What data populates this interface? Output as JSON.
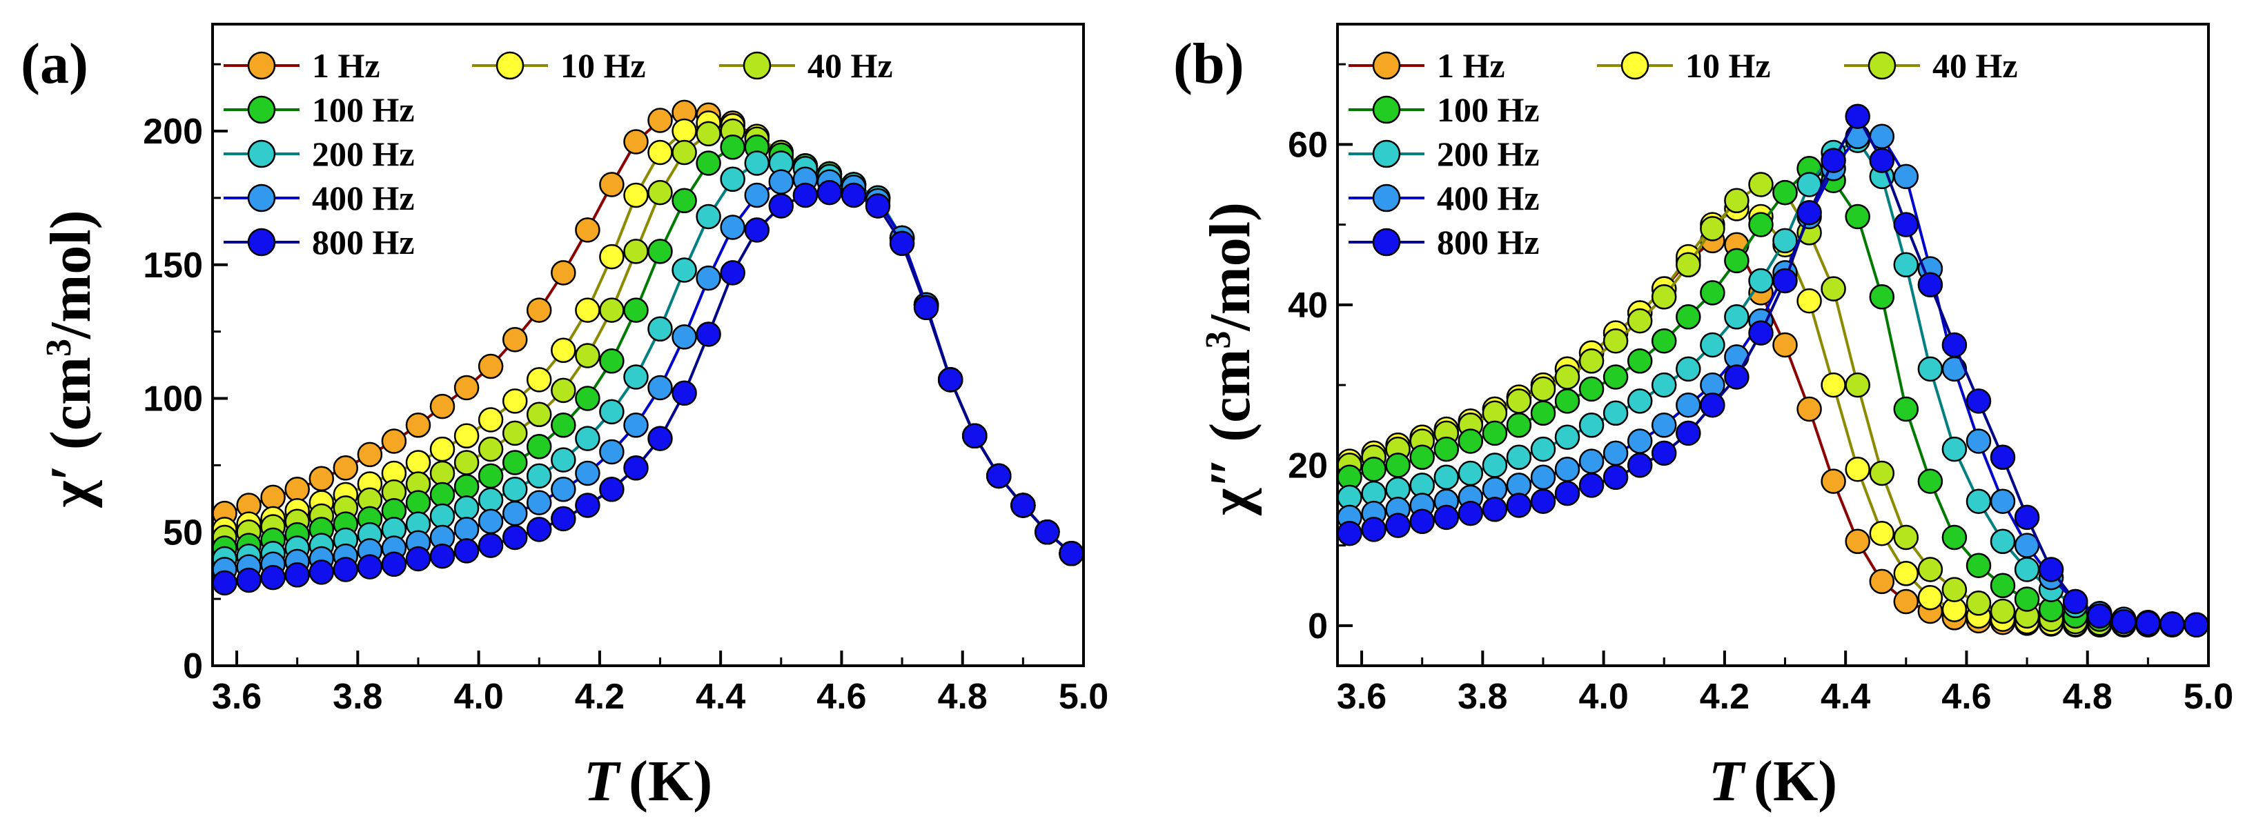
{
  "colors": {
    "1 Hz": {
      "line": "#8B0000",
      "fill": "#F5A623"
    },
    "10 Hz": {
      "line": "#8B8B00",
      "fill": "#FFFF33"
    },
    "40 Hz": {
      "line": "#8B8B00",
      "fill": "#B5E61D"
    },
    "100 Hz": {
      "line": "#007A00",
      "fill": "#22CC22"
    },
    "200 Hz": {
      "line": "#008080",
      "fill": "#33CCCC"
    },
    "400 Hz": {
      "line": "#0000CC",
      "fill": "#3399EE"
    },
    "800 Hz": {
      "line": "#00008B",
      "fill": "#1010EE"
    }
  },
  "chart_data": [
    {
      "type": "line",
      "panel_label": "(a)",
      "xlabel": "T",
      "xlabel_unit": "(K)",
      "ylabel": "χ′ (cm³/mol)",
      "ylabel_main": "χ′ (cm",
      "ylabel_sup": "3",
      "ylabel_tail": "/mol)",
      "xlim": [
        3.56,
        5.0
      ],
      "ylim": [
        0,
        240
      ],
      "xticks": [
        "3.6",
        "3.8",
        "4.0",
        "4.2",
        "4.4",
        "4.6",
        "4.8",
        "5.0"
      ],
      "yticks": [
        "0",
        "50",
        "100",
        "150",
        "200"
      ],
      "legend_position": "top-left",
      "x": [
        3.58,
        3.62,
        3.66,
        3.7,
        3.74,
        3.78,
        3.82,
        3.86,
        3.9,
        3.94,
        3.98,
        4.02,
        4.06,
        4.1,
        4.14,
        4.18,
        4.22,
        4.26,
        4.3,
        4.34,
        4.38,
        4.42,
        4.46,
        4.5,
        4.54,
        4.58,
        4.62,
        4.66,
        4.7,
        4.74,
        4.78,
        4.82,
        4.86,
        4.9,
        4.94,
        4.98
      ],
      "series": [
        {
          "name": "1 Hz",
          "values": [
            57,
            60,
            63,
            66,
            70,
            74,
            79,
            84,
            90,
            97,
            104,
            112,
            122,
            133,
            147,
            163,
            180,
            196,
            204,
            207,
            206,
            203,
            198,
            192,
            187,
            184,
            180,
            175,
            160,
            135,
            107,
            86,
            71,
            60,
            50,
            42
          ]
        },
        {
          "name": "10 Hz",
          "values": [
            51,
            53,
            55,
            58,
            61,
            64,
            68,
            72,
            76,
            81,
            86,
            92,
            99,
            107,
            118,
            133,
            153,
            176,
            192,
            200,
            203,
            202,
            198,
            192,
            187,
            184,
            180,
            175,
            160,
            135,
            107,
            86,
            71,
            60,
            50,
            42
          ]
        },
        {
          "name": "40 Hz",
          "values": [
            48,
            50,
            52,
            54,
            56,
            59,
            62,
            65,
            68,
            72,
            76,
            81,
            87,
            94,
            103,
            116,
            133,
            155,
            177,
            192,
            199,
            200,
            197,
            192,
            187,
            184,
            180,
            175,
            160,
            135,
            107,
            86,
            71,
            60,
            50,
            42
          ]
        },
        {
          "name": "100 Hz",
          "values": [
            44,
            45,
            47,
            49,
            51,
            53,
            55,
            58,
            61,
            64,
            67,
            71,
            76,
            82,
            90,
            100,
            114,
            133,
            155,
            174,
            188,
            194,
            194,
            191,
            187,
            184,
            180,
            175,
            160,
            135,
            107,
            86,
            71,
            60,
            50,
            42
          ]
        },
        {
          "name": "200 Hz",
          "values": [
            40,
            41,
            42,
            44,
            45,
            47,
            49,
            51,
            53,
            56,
            59,
            62,
            66,
            71,
            77,
            85,
            95,
            108,
            126,
            148,
            168,
            182,
            188,
            188,
            186,
            183,
            180,
            175,
            160,
            135,
            107,
            86,
            71,
            60,
            50,
            42
          ]
        },
        {
          "name": "400 Hz",
          "values": [
            36,
            37,
            38,
            39,
            40,
            41,
            43,
            44,
            46,
            48,
            51,
            54,
            57,
            61,
            66,
            72,
            80,
            90,
            104,
            123,
            145,
            164,
            176,
            181,
            182,
            181,
            179,
            174,
            160,
            135,
            107,
            86,
            71,
            60,
            50,
            42
          ]
        },
        {
          "name": "800 Hz",
          "values": [
            31,
            32,
            33,
            34,
            35,
            36,
            37,
            38,
            40,
            41,
            43,
            45,
            48,
            51,
            55,
            60,
            66,
            74,
            85,
            102,
            124,
            147,
            163,
            172,
            176,
            177,
            176,
            172,
            158,
            134,
            107,
            86,
            71,
            60,
            50,
            42
          ]
        }
      ]
    },
    {
      "type": "line",
      "panel_label": "(b)",
      "xlabel": "T",
      "xlabel_unit": "(K)",
      "ylabel": "χ″ (cm³/mol)",
      "ylabel_main": "χ″ (cm",
      "ylabel_sup": "3",
      "ylabel_tail": "/mol)",
      "xlim": [
        3.56,
        5.0
      ],
      "ylim": [
        -5,
        75
      ],
      "xticks": [
        "3.6",
        "3.8",
        "4.0",
        "4.2",
        "4.4",
        "4.6",
        "4.8",
        "5.0"
      ],
      "yticks": [
        "0",
        "20",
        "40",
        "60"
      ],
      "legend_position": "top-left",
      "x": [
        3.58,
        3.62,
        3.66,
        3.7,
        3.74,
        3.78,
        3.82,
        3.86,
        3.9,
        3.94,
        3.98,
        4.02,
        4.06,
        4.1,
        4.14,
        4.18,
        4.22,
        4.26,
        4.3,
        4.34,
        4.38,
        4.42,
        4.46,
        4.5,
        4.54,
        4.58,
        4.62,
        4.66,
        4.7,
        4.74,
        4.78,
        4.82,
        4.86,
        4.9,
        4.94,
        4.98
      ],
      "series": [
        {
          "name": "1 Hz",
          "values": [
            20.5,
            21.5,
            22.5,
            23.5,
            24.5,
            25.5,
            27,
            28.5,
            30,
            32,
            34,
            36.5,
            39,
            42,
            45.5,
            48,
            47.5,
            41.5,
            35,
            27,
            18,
            10.5,
            5.5,
            3,
            1.8,
            1.0,
            0.6,
            0.4,
            0.3,
            0.2,
            0.1,
            0.1,
            0.1,
            0.1,
            0.1,
            0.1
          ]
        },
        {
          "name": "10 Hz",
          "values": [
            20.5,
            21.5,
            22.5,
            23.5,
            24.5,
            25.5,
            27,
            28.5,
            30,
            32,
            34,
            36.5,
            39,
            42,
            46,
            50,
            52,
            51,
            47.5,
            40.5,
            30,
            19.5,
            11.5,
            6.5,
            3.5,
            2.0,
            1.2,
            0.8,
            0.5,
            0.3,
            0.2,
            0.1,
            0.1,
            0.1,
            0.1,
            0.1
          ]
        },
        {
          "name": "40 Hz",
          "values": [
            20,
            21,
            22,
            23,
            24,
            25,
            26.5,
            28,
            29.5,
            31,
            33,
            35.5,
            38,
            41,
            45,
            49.5,
            53,
            55,
            54,
            49,
            42,
            30,
            19,
            11,
            7,
            4.5,
            2.8,
            1.8,
            1.2,
            0.8,
            0.5,
            0.3,
            0.2,
            0.1,
            0.1,
            0.1
          ]
        },
        {
          "name": "100 Hz",
          "values": [
            18.5,
            19.5,
            20,
            21,
            22,
            23,
            24,
            25,
            26.5,
            28,
            29.5,
            31,
            33,
            35.5,
            38.5,
            41.5,
            45.5,
            50,
            54,
            57,
            55.5,
            51,
            41,
            27,
            18,
            11,
            7.5,
            5,
            3.3,
            2.0,
            1.2,
            0.8,
            0.5,
            0.3,
            0.2,
            0.1
          ]
        },
        {
          "name": "200 Hz",
          "values": [
            16,
            16.5,
            17,
            17.5,
            18.5,
            19,
            20,
            21,
            22,
            23.5,
            25,
            26.5,
            28,
            30,
            32,
            35,
            38.5,
            43,
            48,
            55,
            59,
            60.5,
            56,
            45,
            32,
            22,
            15.5,
            10.5,
            7,
            4.5,
            2.5,
            1.5,
            0.8,
            0.4,
            0.2,
            0.1
          ]
        },
        {
          "name": "400 Hz",
          "values": [
            13.5,
            14,
            14.5,
            15,
            15.5,
            16,
            17,
            17.5,
            18.5,
            19.5,
            20.5,
            21.5,
            23,
            25,
            27.5,
            30,
            33.5,
            38,
            44,
            51,
            57,
            61,
            61,
            56,
            44.5,
            32,
            23,
            15.5,
            10,
            6,
            3,
            1.5,
            0.8,
            0.4,
            0.2,
            0.1
          ]
        },
        {
          "name": "800 Hz",
          "values": [
            11.5,
            12,
            12.5,
            13,
            13.5,
            14,
            14.5,
            15,
            15.5,
            16.5,
            17.5,
            18.5,
            20,
            21.5,
            24,
            27.5,
            31,
            36.5,
            43,
            51.5,
            58,
            63.5,
            58,
            50,
            42.5,
            35,
            28,
            21,
            13.5,
            7,
            3,
            1.2,
            0.5,
            0.3,
            0.2,
            0.1
          ]
        }
      ]
    }
  ]
}
